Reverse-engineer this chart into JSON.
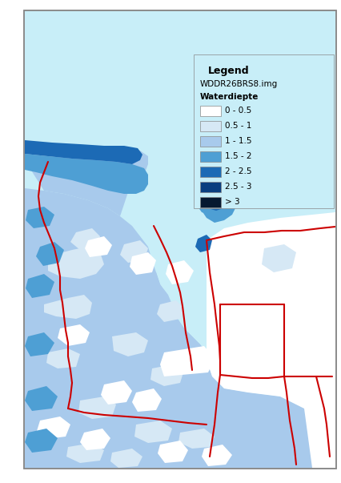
{
  "legend_title": "Legend",
  "legend_subtitle": "WDDR26BRS8.img",
  "legend_label": "Waterdiepte",
  "legend_entries": [
    {
      "label": "0 - 0.5",
      "color": "#FFFFFF",
      "edge": "#AAAAAA"
    },
    {
      "label": "0.5 - 1",
      "color": "#D6E8F5",
      "edge": "#AAAAAA"
    },
    {
      "label": "1 - 1.5",
      "color": "#A8CAEC",
      "edge": "#AAAAAA"
    },
    {
      "label": "1.5 - 2",
      "color": "#4E9FD4",
      "edge": "#AAAAAA"
    },
    {
      "label": "2 - 2.5",
      "color": "#1C6AB5",
      "edge": "#AAAAAA"
    },
    {
      "label": "2.5 - 3",
      "color": "#0A3E80",
      "edge": "#AAAAAA"
    },
    {
      "label": "> 3",
      "color": "#061830",
      "edge": "#AAAAAA"
    }
  ],
  "sea_color": "#C8EEF8",
  "bg_color": "#FFFFFF",
  "border_color": "#999999",
  "red_line_color": "#CC0000",
  "fig_width": 4.27,
  "fig_height": 6.03,
  "dpi": 100
}
